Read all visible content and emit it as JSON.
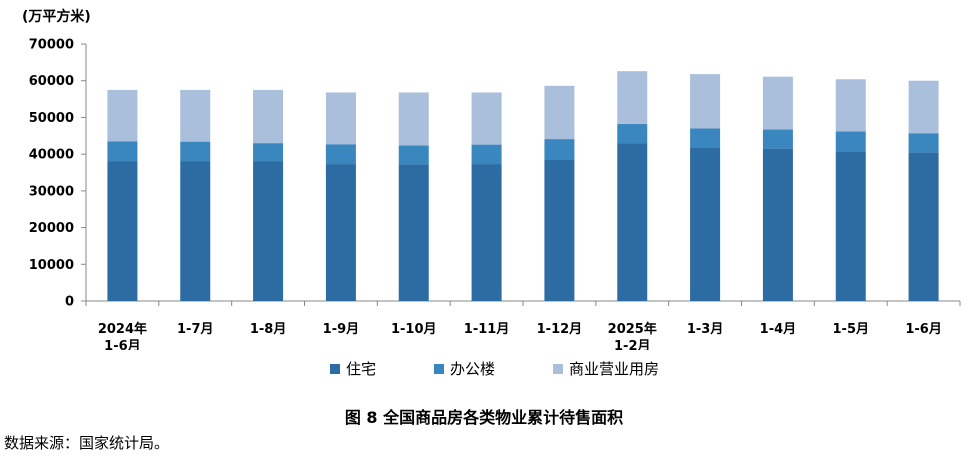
{
  "unit_label": "(万平方米)",
  "title": "图 8 全国商品房各类物业累计待售面积",
  "source": "数据来源：国家统计局。",
  "colors": {
    "residential": "#2d6ca2",
    "office": "#3a87c0",
    "commercial": "#a9bfdc",
    "axis": "#888888"
  },
  "chart_data": {
    "type": "bar",
    "stacked": true,
    "categories": [
      [
        "2024年",
        "1-6月"
      ],
      [
        "1-7月"
      ],
      [
        "1-8月"
      ],
      [
        "1-9月"
      ],
      [
        "1-10月"
      ],
      [
        "1-11月"
      ],
      [
        "1-12月"
      ],
      [
        "2025年",
        "1-2月"
      ],
      [
        "1-3月"
      ],
      [
        "1-4月"
      ],
      [
        "1-5月"
      ],
      [
        "1-6月"
      ]
    ],
    "series": [
      {
        "name": "住宅",
        "values": [
          38000,
          38000,
          38000,
          37300,
          37200,
          37300,
          38600,
          43000,
          41900,
          41600,
          40800,
          40500
        ]
      },
      {
        "name": "办公楼",
        "values": [
          5500,
          5400,
          5000,
          5400,
          5200,
          5300,
          5500,
          5200,
          5100,
          5100,
          5400,
          5200
        ]
      },
      {
        "name": "商业营业用房",
        "values": [
          14000,
          14100,
          14500,
          14100,
          14400,
          14200,
          14500,
          14400,
          14800,
          14400,
          14200,
          14300
        ]
      }
    ],
    "yticks": [
      0,
      10000,
      20000,
      30000,
      40000,
      50000,
      60000,
      70000
    ],
    "ylim": [
      0,
      70000
    ],
    "legend_position": "bottom",
    "grid": false
  }
}
